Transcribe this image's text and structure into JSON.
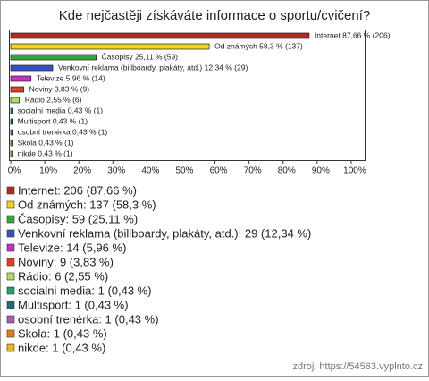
{
  "chart_data": {
    "type": "bar",
    "orientation": "horizontal",
    "title": "Kde nejčastěji získáváte informace o sportu/cvičení?",
    "categories": [
      "Internet",
      "Od známých",
      "Časopisy",
      "Venkovní reklama (billboardy, plakáty, atd.)",
      "Televize",
      "Noviny",
      "Rádio",
      "socialni media",
      "Multisport",
      "osobní trenérka",
      "Skola",
      "nikde"
    ],
    "values": [
      87.66,
      58.3,
      25.11,
      12.34,
      5.96,
      3.83,
      2.55,
      0.43,
      0.43,
      0.43,
      0.43,
      0.43
    ],
    "value_labels": [
      "Internet 87,66 % (206)",
      "Od známých 58,3 % (137)",
      "Časopisy 25,11 % (59)",
      "Venkovní reklama (billboardy, plakáty, atd.) 12,34 % (29)",
      "Televize 5,96 % (14)",
      "Noviny 3,83 % (9)",
      "Rádio 2,55 % (6)",
      "socialni media 0,43 % (1)",
      "Multisport 0,43 % (1)",
      "osobní trenérka 0,43 % (1)",
      "Skola 0,43 % (1)",
      "nikde 0,43 % (1)"
    ],
    "legend_labels": [
      "Internet: 206 (87,66 %)",
      "Od známých: 137 (58,3 %)",
      "Časopisy: 59 (25,11 %)",
      "Venkovní reklama (billboardy, plakáty, atd.): 29 (12,34 %)",
      "Televize: 14 (5,96 %)",
      "Noviny: 9 (3,83 %)",
      "Rádio: 6 (2,55 %)",
      "socialni media: 1 (0,43 %)",
      "Multisport: 1 (0,43 %)",
      "osobní trenérka: 1 (0,43 %)",
      "Skola: 1 (0,43 %)",
      "nikde: 1 (0,43 %)"
    ],
    "colors": [
      "#b5271d",
      "#f2d41c",
      "#33a838",
      "#3552c4",
      "#c233c2",
      "#e2401e",
      "#a8e060",
      "#22a070",
      "#236a80",
      "#a65fb5",
      "#e57a22",
      "#e8b81a"
    ],
    "xlim": [
      0,
      105
    ],
    "xticks": [
      {
        "value": 0,
        "label": "0%"
      },
      {
        "value": 10,
        "label": "10%"
      },
      {
        "value": 20,
        "label": "20%"
      },
      {
        "value": 30,
        "label": "30%"
      },
      {
        "value": 40,
        "label": "40%"
      },
      {
        "value": 50,
        "label": "50%"
      },
      {
        "value": 60,
        "label": "60%"
      },
      {
        "value": 70,
        "label": "70%"
      },
      {
        "value": 80,
        "label": "80%"
      },
      {
        "value": 90,
        "label": "90%"
      },
      {
        "value": 100,
        "label": "100%"
      }
    ],
    "source": "zdroj: https://54563.vyplnto.cz"
  }
}
